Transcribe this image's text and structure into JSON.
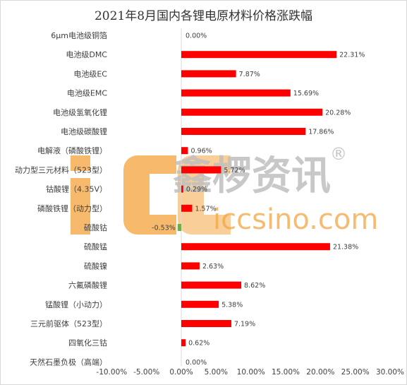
{
  "colors": {
    "positive": "#ff0000",
    "negative": "#70ad47",
    "watermark": "#f2a040",
    "watermark_gray": "#bfbfbf"
  },
  "watermark": {
    "brand": "icc",
    "name_cn": "鑫椤资讯",
    "registered": "®",
    "site": "iccsino.com"
  },
  "chart_data": {
    "type": "bar",
    "orientation": "horizontal",
    "title": "2021年8月国内各锂电原材料价格涨跌幅",
    "categories": [
      "6μm电池级铜箔",
      "电池级DMC",
      "电池级EC",
      "电池级EMC",
      "电池级氢氧化锂",
      "电池级碳酸锂",
      "电解液（磷酸铁锂）",
      "动力型三元材料（523型）",
      "钴酸锂（4.35V）",
      "磷酸铁锂（动力型）",
      "硫酸钴",
      "硫酸锰",
      "硫酸镍",
      "六氟磷酸锂",
      "锰酸锂（小动力）",
      "三元前驱体（523型）",
      "四氧化三钴",
      "天然石墨负极（高端）"
    ],
    "values": [
      0.0,
      22.31,
      7.87,
      15.69,
      20.28,
      17.86,
      0.96,
      5.72,
      0.29,
      1.57,
      -0.53,
      21.38,
      2.63,
      8.62,
      5.38,
      7.19,
      0.62,
      0.0
    ],
    "data_labels": [
      "0.00%",
      "22.31%",
      "7.87%",
      "15.69%",
      "20.28%",
      "17.86%",
      "0.96%",
      "5.72%",
      "0.29%",
      "1.57%",
      "-0.53%",
      "21.38%",
      "2.63%",
      "8.62%",
      "5.38%",
      "7.19%",
      "0.62%",
      "0.00%"
    ],
    "xlim": [
      -10,
      30
    ],
    "xticks": [
      -10,
      -5,
      0,
      5,
      10,
      15,
      20,
      25,
      30
    ],
    "xtick_labels": [
      "-10.00%",
      "-5.00%",
      "0.00%",
      "5.00%",
      "10.00%",
      "15.00%",
      "20.00%",
      "25.00%",
      "30.00%"
    ],
    "grid": false,
    "legend": "none"
  }
}
